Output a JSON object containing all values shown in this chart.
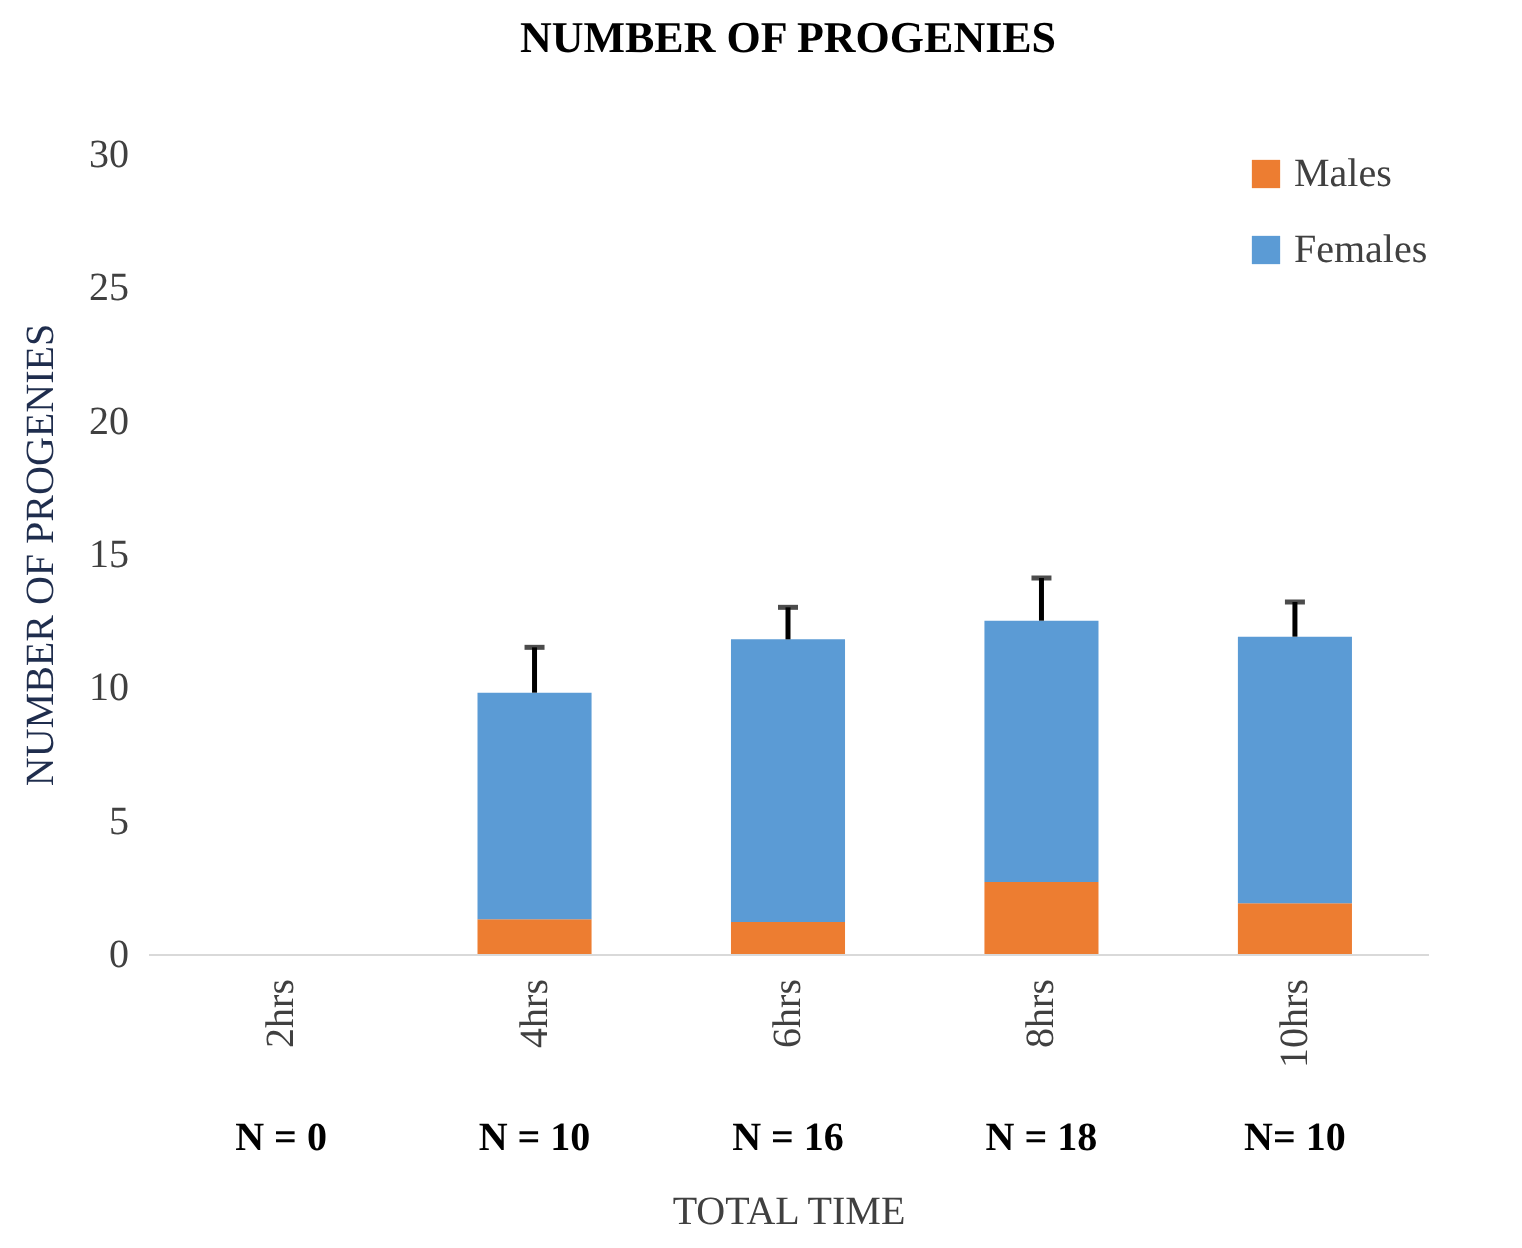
{
  "chart_data": {
    "type": "bar",
    "title": "NUMBER OF PROGENIES",
    "xlabel": "TOTAL TIME",
    "ylabel": "NUMBER OF PROGENIES",
    "categories": [
      "2hrs",
      "4hrs",
      "6hrs",
      "8hrs",
      "10hrs"
    ],
    "stacked": true,
    "series": [
      {
        "name": "Males",
        "color": "#ed7d31",
        "values": [
          0,
          1.3,
          1.2,
          2.7,
          1.9
        ]
      },
      {
        "name": "Females",
        "color": "#5b9bd5",
        "values": [
          0,
          8.5,
          10.6,
          9.8,
          10.0
        ],
        "errors": [
          null,
          [
            9.8,
            11.5
          ],
          [
            11.8,
            13.0
          ],
          [
            12.5,
            14.1
          ],
          [
            11.9,
            13.2
          ]
        ]
      }
    ],
    "ylim": [
      0,
      30
    ],
    "yticks": [
      0,
      5,
      10,
      15,
      20,
      25,
      30
    ],
    "grid": false,
    "legend": "top right",
    "annotations": [
      "N = 0",
      "N = 10",
      "N = 16",
      "N = 18",
      "N= 10"
    ]
  }
}
